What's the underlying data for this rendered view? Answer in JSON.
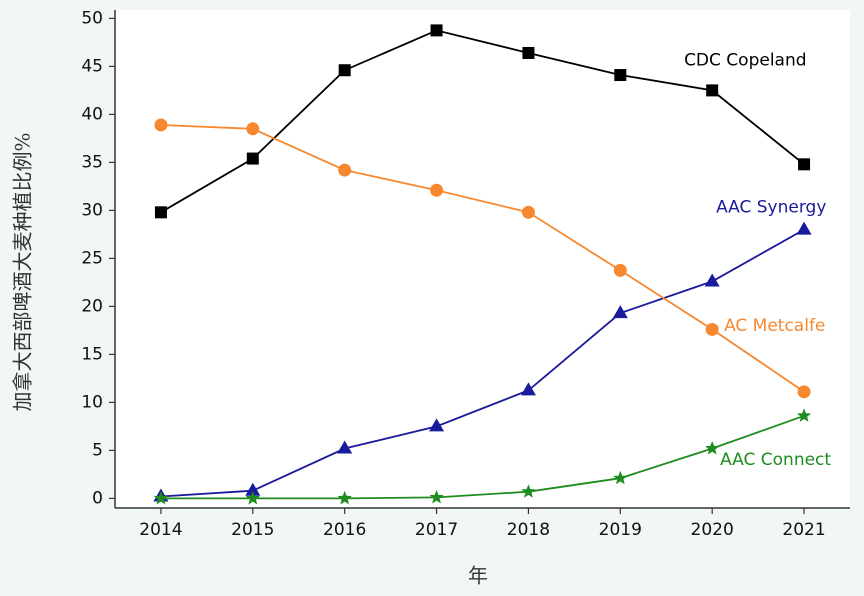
{
  "chart_data": {
    "type": "line",
    "x_label": "年",
    "y_label": "加拿大西部啤酒大麦种植比例%",
    "x": [
      2014,
      2015,
      2016,
      2017,
      2018,
      2019,
      2020,
      2021
    ],
    "xlim": [
      2013.5,
      2021.5
    ],
    "xticks": [
      2014,
      2015,
      2016,
      2017,
      2018,
      2019,
      2020,
      2021
    ],
    "ylim": [
      -1,
      50
    ],
    "yticks": [
      0,
      5,
      10,
      15,
      20,
      25,
      30,
      35,
      40,
      45,
      50
    ],
    "grid": false,
    "series": [
      {
        "name": "CDC Copeland",
        "color": "#000000",
        "marker": "square",
        "values": [
          29.8,
          35.4,
          44.6,
          48.75,
          46.4,
          44.1,
          42.5,
          34.8
        ]
      },
      {
        "name": "AAC Synergy",
        "color": "#1a1a9c",
        "marker": "triangle",
        "values": [
          0.2,
          0.8,
          5.2,
          7.5,
          11.25,
          19.3,
          22.6,
          28.0
        ]
      },
      {
        "name": "AC Metcalfe",
        "color": "#f7882f",
        "marker": "circle",
        "values": [
          38.9,
          38.5,
          34.2,
          32.1,
          29.8,
          23.75,
          17.6,
          11.1
        ]
      },
      {
        "name": "AAC Connect",
        "color": "#1e8c1e",
        "marker": "star",
        "values": [
          0,
          0,
          0,
          0.1,
          0.7,
          2.1,
          5.2,
          8.6
        ]
      }
    ]
  }
}
